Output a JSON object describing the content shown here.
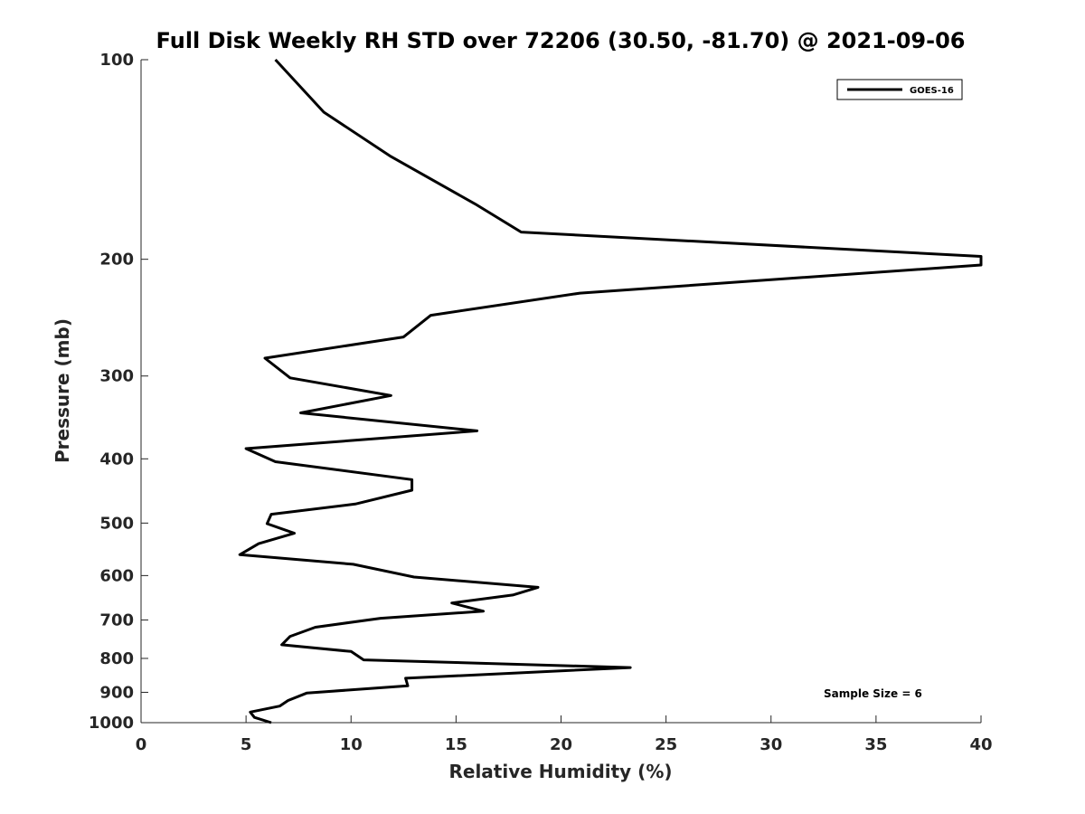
{
  "chart_data": {
    "type": "line",
    "title": "Full Disk Weekly RH STD over 72206 (30.50, -81.70) @ 2021-09-06",
    "xlabel": "Relative Humidity (%)",
    "ylabel": "Pressure (mb)",
    "xlim": [
      0,
      40
    ],
    "ylim": [
      1000,
      100
    ],
    "yscale": "log",
    "y_reversed": true,
    "grid": false,
    "legend_position": "top-right",
    "x_ticks": [
      "0",
      "5",
      "10",
      "15",
      "20",
      "25",
      "30",
      "35",
      "40"
    ],
    "y_ticks": [
      "100",
      "200",
      "300",
      "400",
      "500",
      "600",
      "700",
      "800",
      "900",
      "1000"
    ],
    "series": [
      {
        "name": "GOES-16",
        "color": "#000000",
        "points": [
          [
            6.4,
            100
          ],
          [
            8.7,
            120
          ],
          [
            11.9,
            140
          ],
          [
            15.9,
            165
          ],
          [
            18.1,
            182
          ],
          [
            40.0,
            198
          ],
          [
            40.0,
            204
          ],
          [
            20.9,
            225
          ],
          [
            13.8,
            243
          ],
          [
            12.5,
            262
          ],
          [
            5.9,
            282
          ],
          [
            7.1,
            302
          ],
          [
            11.9,
            321
          ],
          [
            7.6,
            341
          ],
          [
            16.0,
            363
          ],
          [
            5.0,
            386
          ],
          [
            6.4,
            404
          ],
          [
            12.9,
            430
          ],
          [
            12.9,
            446
          ],
          [
            10.2,
            468
          ],
          [
            6.2,
            485
          ],
          [
            6.0,
            501
          ],
          [
            7.3,
            518
          ],
          [
            5.6,
            537
          ],
          [
            4.7,
            558
          ],
          [
            10.1,
            577
          ],
          [
            13.0,
            603
          ],
          [
            18.9,
            625
          ],
          [
            17.7,
            642
          ],
          [
            14.8,
            660
          ],
          [
            16.3,
            679
          ],
          [
            11.4,
            696
          ],
          [
            8.3,
            718
          ],
          [
            7.1,
            741
          ],
          [
            6.7,
            763
          ],
          [
            10.0,
            781
          ],
          [
            10.6,
            804
          ],
          [
            23.3,
            826
          ],
          [
            12.6,
            857
          ],
          [
            12.7,
            880
          ],
          [
            7.9,
            902
          ],
          [
            7.0,
            926
          ],
          [
            6.6,
            944
          ],
          [
            5.2,
            964
          ],
          [
            5.4,
            982
          ],
          [
            6.2,
            1000
          ]
        ]
      }
    ],
    "annotation": "Sample Size = 6"
  }
}
